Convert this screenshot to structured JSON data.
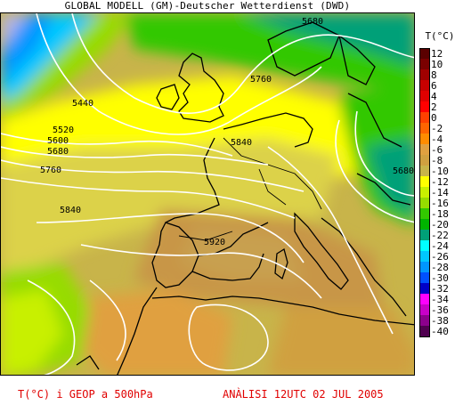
{
  "header": {
    "title": "GLOBAL MODELL (GM)-Deutscher Wetterdienst (DWD)"
  },
  "legend": {
    "title": "T(°C)",
    "items": [
      {
        "label": "12",
        "color": "#5a0000"
      },
      {
        "label": "10",
        "color": "#7a0000"
      },
      {
        "label": "8",
        "color": "#a00000"
      },
      {
        "label": "6",
        "color": "#c80000"
      },
      {
        "label": "4",
        "color": "#e00000"
      },
      {
        "label": "2",
        "color": "#ff0000"
      },
      {
        "label": "0",
        "color": "#ff4000"
      },
      {
        "label": "-2",
        "color": "#ff6400"
      },
      {
        "label": "-4",
        "color": "#ff8c00"
      },
      {
        "label": "-6",
        "color": "#e0a040"
      },
      {
        "label": "-8",
        "color": "#d0a040"
      },
      {
        "label": "-10",
        "color": "#c8b44a"
      },
      {
        "label": "-12",
        "color": "#ffff00"
      },
      {
        "label": "-14",
        "color": "#c8f000"
      },
      {
        "label": "-16",
        "color": "#96dc00"
      },
      {
        "label": "-18",
        "color": "#32c800"
      },
      {
        "label": "-20",
        "color": "#00b400"
      },
      {
        "label": "-22",
        "color": "#00a078"
      },
      {
        "label": "-24",
        "color": "#00ffff"
      },
      {
        "label": "-26",
        "color": "#00c8ff"
      },
      {
        "label": "-28",
        "color": "#0096ff"
      },
      {
        "label": "-30",
        "color": "#0050ff"
      },
      {
        "label": "-32",
        "color": "#0000c8"
      },
      {
        "label": "-34",
        "color": "#ff00ff"
      },
      {
        "label": "-36",
        "color": "#c800c8"
      },
      {
        "label": "-38",
        "color": "#8c008c"
      },
      {
        "label": "-40",
        "color": "#500050"
      }
    ]
  },
  "contour_labels": [
    "5680",
    "5760",
    "5440",
    "5520",
    "5600",
    "5680",
    "5760",
    "5840",
    "5840",
    "5920",
    "5680"
  ],
  "footer": {
    "left": "T(°C) i GEOP a 500hPa",
    "right": "ANÀLISI 12UTC 02 JUL 2005"
  },
  "colors": {
    "title_text": "#000000",
    "footer_text": "#e00000",
    "contour_line": "#ffffff",
    "coastline": "#000000"
  }
}
